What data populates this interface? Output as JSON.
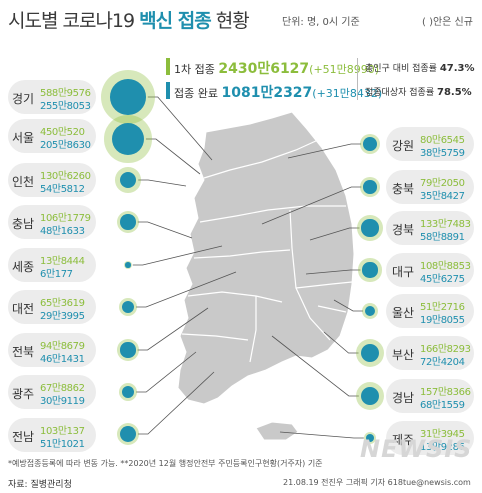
{
  "title_prefix": "시도별 코로나19 ",
  "title_bold": "백신 접종",
  "title_suffix": " 현황",
  "unit_note": "단위: 명, 0시 기준",
  "legend_note": "( )안은 신규",
  "summary": {
    "first_label": "1차 접종",
    "first_value": "2430만6127",
    "first_new": "(+51만8990)",
    "full_label": "접종 완료",
    "full_value": "1081만2327",
    "full_new": "(+31만8432)",
    "pop_rate_label": "총인구 대비 접종률",
    "pop_rate": "47.3%",
    "target_rate_label": "접종대상자 접종률",
    "target_rate": "78.5%"
  },
  "footnote": "*예방접종등록에 따라 변동 가능.  **2020년 12월 행정안전부 주민등록인구현황(거주자) 기준",
  "source": "자료: 질병관리청",
  "credit": "21.08.19 전진우 그래픽 기자 618tue@newsis.com",
  "watermark": "NEWSIS",
  "colors": {
    "first": "#8cbd3c",
    "full": "#1f8fae",
    "map": "#c9c9c9",
    "pill": "#ececec"
  },
  "chart_data": {
    "type": "bubble-map",
    "series": [
      {
        "name": "1차 접종",
        "color": "#8cbd3c"
      },
      {
        "name": "접종 완료",
        "color": "#1f8fae"
      }
    ],
    "regions": [
      {
        "name": "경기",
        "first": "588만9576",
        "full": "255만8053",
        "first_n": 5889576,
        "full_n": 2558053
      },
      {
        "name": "서울",
        "first": "450만520",
        "full": "205만8630",
        "first_n": 4500520,
        "full_n": 2058630
      },
      {
        "name": "인천",
        "first": "130만6260",
        "full": "54만5812",
        "first_n": 1306260,
        "full_n": 545812
      },
      {
        "name": "충남",
        "first": "106만1779",
        "full": "48만1633",
        "first_n": 1061779,
        "full_n": 481633
      },
      {
        "name": "세종",
        "first": "13만8444",
        "full": "6만177",
        "first_n": 138444,
        "full_n": 60177
      },
      {
        "name": "대전",
        "first": "65만3619",
        "full": "29만3995",
        "first_n": 653619,
        "full_n": 293995
      },
      {
        "name": "전북",
        "first": "94만8679",
        "full": "46만1431",
        "first_n": 948679,
        "full_n": 461431
      },
      {
        "name": "광주",
        "first": "67만8862",
        "full": "30만9119",
        "first_n": 678862,
        "full_n": 309119
      },
      {
        "name": "전남",
        "first": "103만137",
        "full": "51만1021",
        "first_n": 1030137,
        "full_n": 511021
      },
      {
        "name": "강원",
        "first": "80만6545",
        "full": "38만5759",
        "first_n": 806545,
        "full_n": 385759
      },
      {
        "name": "충북",
        "first": "79만2050",
        "full": "35만8427",
        "first_n": 792050,
        "full_n": 358427
      },
      {
        "name": "경북",
        "first": "133만7483",
        "full": "58만8891",
        "first_n": 1337483,
        "full_n": 588891
      },
      {
        "name": "대구",
        "first": "108만8853",
        "full": "45만6275",
        "first_n": 1088853,
        "full_n": 456275
      },
      {
        "name": "울산",
        "first": "51만2716",
        "full": "19만8055",
        "first_n": 512716,
        "full_n": 198055
      },
      {
        "name": "부산",
        "first": "166만8293",
        "full": "72만4204",
        "first_n": 1668293,
        "full_n": 724204
      },
      {
        "name": "경남",
        "first": "157만8366",
        "full": "68만1559",
        "first_n": 1578366,
        "full_n": 681559
      },
      {
        "name": "제주",
        "first": "31만3945",
        "full": "13만9286",
        "first_n": 313945,
        "full_n": 139286
      }
    ]
  }
}
